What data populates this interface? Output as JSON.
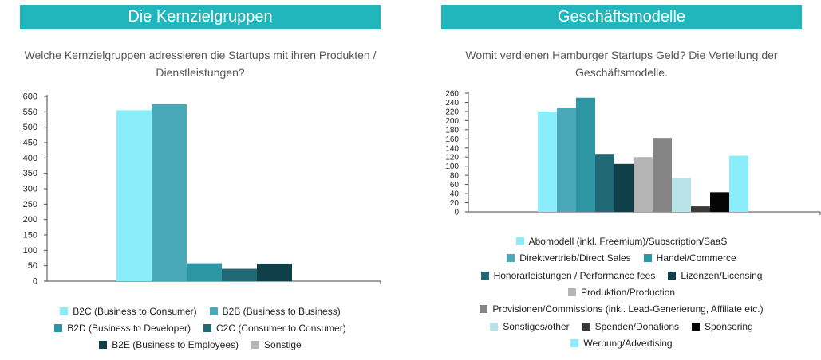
{
  "left": {
    "banner_title": "Die Kernzielgruppen",
    "question": "Welche Kernzielgruppen adressieren die Startups mit ihren Produkten / Dienstleistungen?"
  },
  "right": {
    "banner_title": "Geschäftsmodelle",
    "question": "Womit verdienen Hamburger Startups Geld? Die Verteilung der Geschäftsmodelle."
  },
  "colors": {
    "banner": "#21b6bb"
  },
  "chart_data": [
    {
      "type": "bar",
      "ylim": [
        0,
        600
      ],
      "yticks": [
        0,
        50,
        100,
        150,
        200,
        250,
        300,
        350,
        400,
        450,
        500,
        550,
        600
      ],
      "grid": false,
      "legend_position": "bottom",
      "series": [
        {
          "name": "B2C (Business to Consumer)",
          "value": 555,
          "color": "#8aeefa"
        },
        {
          "name": "B2B (Business to Business)",
          "value": 575,
          "color": "#4aa9b9"
        },
        {
          "name": "B2D (Business to Developer)",
          "value": 58,
          "color": "#2e96a3"
        },
        {
          "name": "C2C (Consumer to Consumer)",
          "value": 40,
          "color": "#216a75"
        },
        {
          "name": "B2E (Business to Employees)",
          "value": 57,
          "color": "#0f3f48"
        },
        {
          "name": "Sonstige",
          "value": 0,
          "color": "#b4b4b4"
        }
      ]
    },
    {
      "type": "bar",
      "ylim": [
        0,
        260
      ],
      "yticks": [
        0,
        20,
        40,
        60,
        80,
        100,
        120,
        140,
        160,
        180,
        200,
        220,
        240,
        260
      ],
      "grid": false,
      "legend_position": "bottom",
      "series": [
        {
          "name": "Abomodell (inkl. Freemium)/Subscription/SaaS",
          "value": 220,
          "color": "#8aeefa"
        },
        {
          "name": "Direktvertrieb/Direct Sales",
          "value": 228,
          "color": "#4aa9b9"
        },
        {
          "name": "Handel/Commerce",
          "value": 250,
          "color": "#2e96a3"
        },
        {
          "name": "Honorarleistungen / Performance fees",
          "value": 127,
          "color": "#216a75"
        },
        {
          "name": "Lizenzen/Licensing",
          "value": 105,
          "color": "#0f3f48"
        },
        {
          "name": "Produktion/Production",
          "value": 120,
          "color": "#b4b4b4"
        },
        {
          "name": "Provisionen/Commissions (inkl. Lead-Generierung, Affiliate etc.)",
          "value": 162,
          "color": "#858585"
        },
        {
          "name": "Sonstiges/other",
          "value": 74,
          "color": "#b8e3e7"
        },
        {
          "name": "Spenden/Donations",
          "value": 12,
          "color": "#3a3a3a"
        },
        {
          "name": "Sponsoring",
          "value": 43,
          "color": "#050505"
        },
        {
          "name": "Werbung/Advertising",
          "value": 123,
          "color": "#8aeefa"
        }
      ]
    }
  ]
}
